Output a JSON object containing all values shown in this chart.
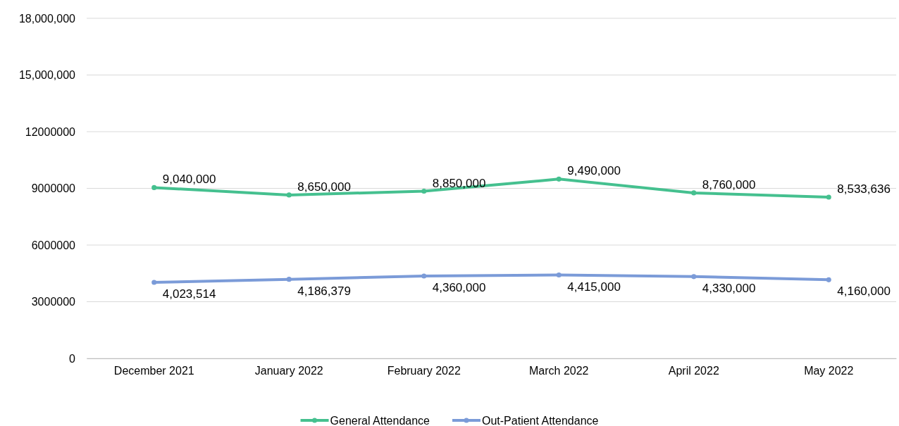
{
  "chart_data": {
    "type": "line",
    "categories": [
      "December 2021",
      "January 2022",
      "February 2022",
      "March 2022",
      "April 2022",
      "May 2022"
    ],
    "series": [
      {
        "name": "General Attendance",
        "color": "#45c08f",
        "values": [
          9040000,
          8650000,
          8850000,
          9490000,
          8760000,
          8533636
        ],
        "value_labels": [
          "9,040,000",
          "8,650,000",
          "8,850,000",
          "9,490,000",
          "8,760,000",
          "8,533,636"
        ]
      },
      {
        "name": "Out-Patient Attendance",
        "color": "#7b9bd8",
        "values": [
          4023514,
          4186379,
          4360000,
          4415000,
          4330000,
          4160000
        ],
        "value_labels": [
          "4,023,514",
          "4,186,379",
          "4,360,000",
          "4,415,000",
          "4,330,000",
          "4,160,000"
        ]
      }
    ],
    "ylim": [
      0,
      18000000
    ],
    "yticks": [
      0,
      3000000,
      6000000,
      9000000,
      12000000,
      {
        "value": 15000000,
        "label": "15,000,000"
      },
      {
        "value": 18000000,
        "label": "18,000,000"
      }
    ],
    "grid": "y",
    "legend": "bottom",
    "marker": "circle"
  }
}
